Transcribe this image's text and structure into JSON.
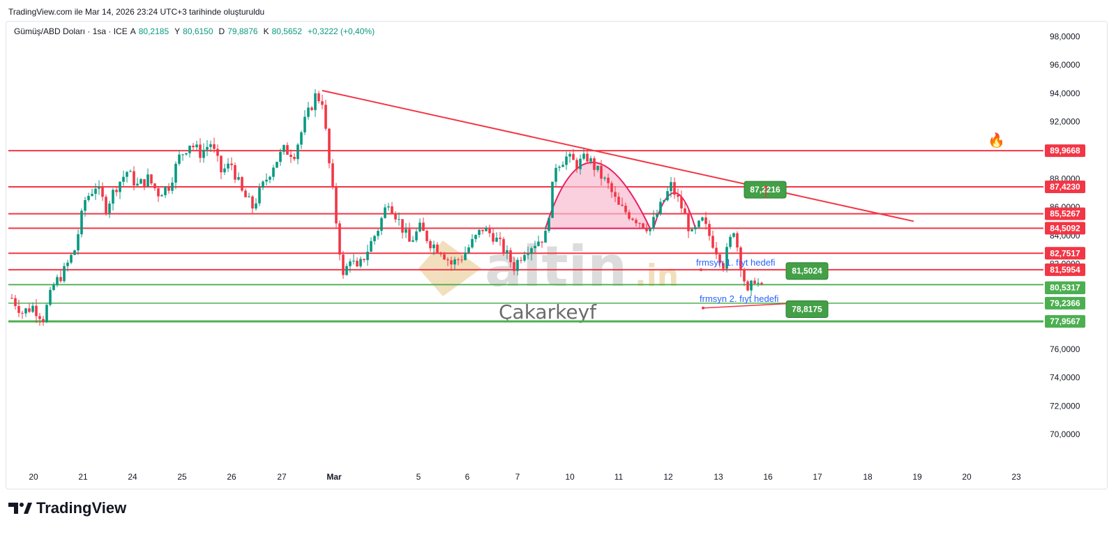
{
  "header": {
    "text": "TradingView.com ile Mar 14, 2026 23:24 UTC+3 tarihinde oluşturuldu"
  },
  "legend": {
    "symbol": "Gümüş/ABD Doları · 1sa · ICE",
    "open_label": "A",
    "open": "80,2185",
    "high_label": "Y",
    "high": "80,6150",
    "low_label": "D",
    "low": "79,8876",
    "close_label": "K",
    "close": "80,5652",
    "change": "+0,3222 (+0,40%)"
  },
  "watermark": {
    "brand": "altin",
    "suffix": ".in",
    "author": "Çakarkeyf"
  },
  "footer": {
    "brand": "TradingView"
  },
  "colors": {
    "up": "#089981",
    "down": "#f23645",
    "level_red": "#f23645",
    "level_green": "#4caf50",
    "arc_fill": "#f8bbd0"
  },
  "chart_data": {
    "type": "candlestick",
    "symbol": "Gümüş/ABD Doları",
    "interval": "1sa",
    "ylim": [
      68.0,
      99.0
    ],
    "y_ticks": [
      "98,0000",
      "96,0000",
      "94,0000",
      "92,0000",
      "90,0000",
      "88,0000",
      "86,0000",
      "84,0000",
      "82,0000",
      "76,0000",
      "74,0000",
      "72,0000",
      "70,0000"
    ],
    "x_labels": [
      "20",
      "21",
      "24",
      "25",
      "26",
      "27",
      "Mar",
      "5",
      "6",
      "7",
      "10",
      "11",
      "12",
      "13",
      "16",
      "17",
      "18",
      "19",
      "20",
      "23"
    ],
    "red_levels": [
      {
        "value": 89.9668,
        "label": "89,9668"
      },
      {
        "value": 87.423,
        "label": "87,4230"
      },
      {
        "value": 85.5267,
        "label": "85,5267"
      },
      {
        "value": 84.5092,
        "label": "84,5092"
      },
      {
        "value": 82.7517,
        "label": "82,7517"
      },
      {
        "value": 81.5954,
        "label": "81,5954"
      }
    ],
    "green_levels": [
      {
        "value": 80.5317,
        "label": "80,5317"
      },
      {
        "value": 79.2366,
        "label": "79,2366"
      },
      {
        "value": 77.9567,
        "label": "77,9567"
      }
    ],
    "current_price": {
      "value": 80.5652,
      "label": "80,5652"
    },
    "trendline": {
      "start": {
        "x": "27",
        "y": 94.2
      },
      "end": {
        "x": "19",
        "y": 85.0
      }
    },
    "annotations": [
      {
        "text": "87,2216",
        "value": 87.2216
      },
      {
        "text": "81,5024",
        "value": 81.5024
      },
      {
        "text": "78,8175",
        "value": 78.8175
      },
      {
        "text": "frmsyn 1. fıyt hedefi",
        "value": 81.5954
      },
      {
        "text": "frmsyn 2. fıyt hedefi",
        "value": 79.2366
      }
    ],
    "price_path": [
      [
        0,
        79.6
      ],
      [
        3,
        78.6
      ],
      [
        6,
        79.0
      ],
      [
        9,
        78.2
      ],
      [
        12,
        80.5
      ],
      [
        15,
        81.5
      ],
      [
        18,
        83.0
      ],
      [
        21,
        86.5
      ],
      [
        24,
        87.5
      ],
      [
        27,
        86.0
      ],
      [
        30,
        87.5
      ],
      [
        33,
        88.5
      ],
      [
        36,
        87.5
      ],
      [
        39,
        88.0
      ],
      [
        42,
        87.0
      ],
      [
        45,
        87.5
      ],
      [
        48,
        89.5
      ],
      [
        51,
        90.5
      ],
      [
        54,
        89.8
      ],
      [
        57,
        90.5
      ],
      [
        60,
        88.5
      ],
      [
        63,
        89.0
      ],
      [
        66,
        87.0
      ],
      [
        69,
        86.0
      ],
      [
        72,
        87.5
      ],
      [
        75,
        89.0
      ],
      [
        78,
        90.0
      ],
      [
        81,
        89.8
      ],
      [
        84,
        92.0
      ],
      [
        87,
        93.8
      ],
      [
        89,
        93.5
      ],
      [
        91,
        89.0
      ],
      [
        93,
        85.0
      ],
      [
        95,
        81.0
      ],
      [
        97,
        82.5
      ],
      [
        99,
        81.5
      ],
      [
        102,
        83.0
      ],
      [
        105,
        84.5
      ],
      [
        108,
        86.5
      ],
      [
        111,
        85.0
      ],
      [
        114,
        83.5
      ],
      [
        117,
        84.5
      ],
      [
        120,
        83.5
      ],
      [
        123,
        83.0
      ],
      [
        126,
        82.0
      ],
      [
        129,
        82.5
      ],
      [
        132,
        83.5
      ],
      [
        135,
        84.5
      ],
      [
        138,
        84.0
      ],
      [
        141,
        83.0
      ],
      [
        144,
        81.8
      ],
      [
        147,
        83.0
      ],
      [
        150,
        83.5
      ],
      [
        153,
        84.0
      ],
      [
        156,
        89.0
      ],
      [
        159,
        89.5
      ],
      [
        162,
        89.0
      ],
      [
        165,
        89.5
      ],
      [
        168,
        88.5
      ],
      [
        171,
        87.5
      ],
      [
        174,
        86.0
      ],
      [
        177,
        85.5
      ],
      [
        180,
        85.0
      ],
      [
        183,
        84.5
      ],
      [
        186,
        86.0
      ],
      [
        189,
        87.5
      ],
      [
        192,
        86.0
      ],
      [
        195,
        84.0
      ],
      [
        198,
        85.0
      ],
      [
        201,
        83.5
      ],
      [
        204,
        82.0
      ],
      [
        207,
        84.5
      ],
      [
        209,
        82.0
      ],
      [
        211,
        79.8
      ],
      [
        213,
        81.0
      ],
      [
        215,
        80.2
      ]
    ]
  }
}
